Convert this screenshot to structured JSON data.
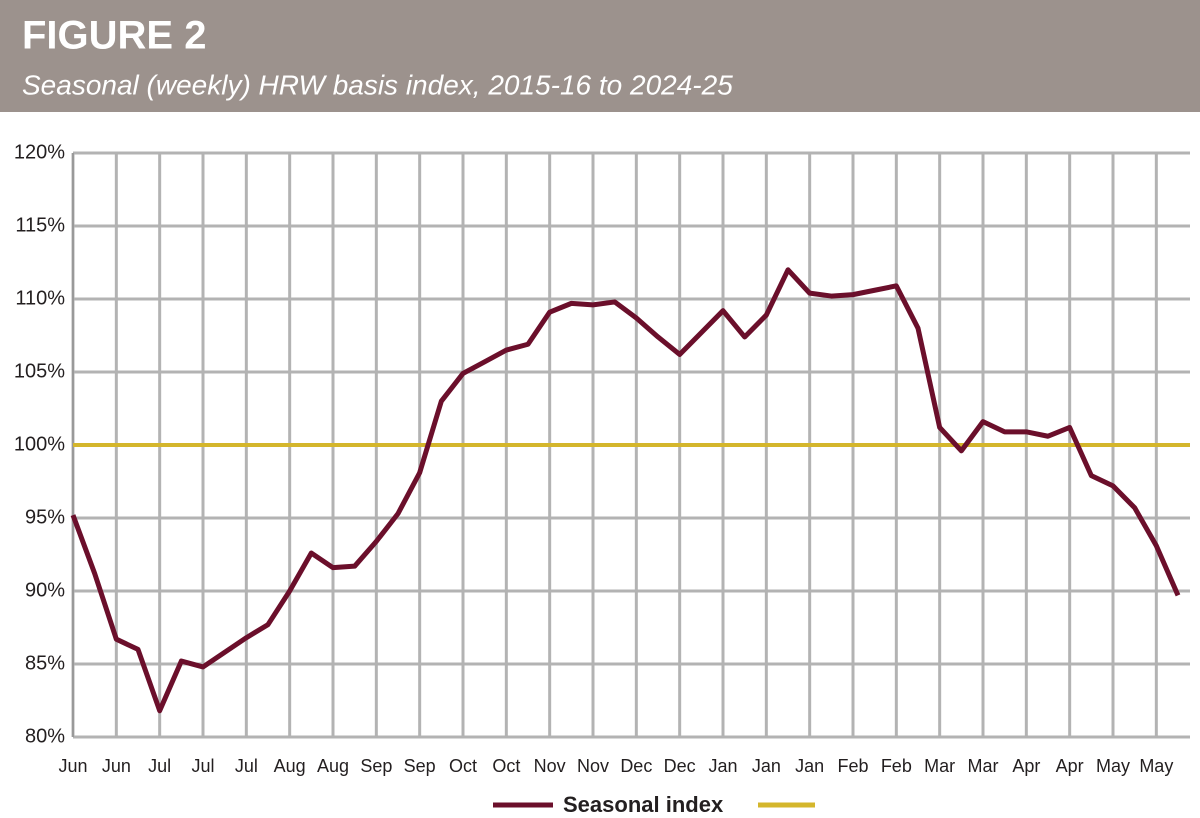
{
  "chart_data": {
    "type": "line",
    "title": "FIGURE 2",
    "subtitle": "Seasonal (weekly) HRW basis index, 2015-16 to 2024-25",
    "categories": [
      "Jun",
      null,
      "Jun",
      null,
      "Jul",
      null,
      "Jul",
      null,
      "Jul",
      null,
      "Aug",
      null,
      "Aug",
      null,
      "Sep",
      null,
      "Sep",
      null,
      "Oct",
      null,
      "Oct",
      null,
      "Nov",
      null,
      "Nov",
      null,
      "Dec",
      null,
      "Dec",
      null,
      "Jan",
      null,
      "Jan",
      null,
      "Jan",
      null,
      "Feb",
      null,
      "Feb",
      null,
      "Mar",
      null,
      "Mar",
      null,
      "Apr",
      null,
      "Apr",
      null,
      "May",
      null,
      "May",
      null
    ],
    "series": [
      {
        "name": "Seasonal index",
        "color": "#6b0f2b",
        "values": [
          95.2,
          91.2,
          86.7,
          86.0,
          81.8,
          85.2,
          84.8,
          85.8,
          86.8,
          87.7,
          90.0,
          92.6,
          91.6,
          91.7,
          93.4,
          95.3,
          98.1,
          103.0,
          104.9,
          105.7,
          106.5,
          106.9,
          109.1,
          109.7,
          109.6,
          109.8,
          108.7,
          107.4,
          106.2,
          107.7,
          109.2,
          107.4,
          108.9,
          112.0,
          110.4,
          110.2,
          110.3,
          110.6,
          110.9,
          108.0,
          101.2,
          99.6,
          101.6,
          100.9,
          100.9,
          100.6,
          101.2,
          97.9,
          97.2,
          95.7,
          93.1,
          89.7
        ]
      }
    ],
    "reference_line": {
      "value": 100,
      "color": "#d4b62c"
    },
    "ylim": [
      80,
      120
    ],
    "yticks": [
      {
        "value": 80,
        "label": "80%"
      },
      {
        "value": 85,
        "label": "85%"
      },
      {
        "value": 90,
        "label": "90%"
      },
      {
        "value": 95,
        "label": "95%"
      },
      {
        "value": 100,
        "label": "100%"
      },
      {
        "value": 105,
        "label": "105%"
      },
      {
        "value": 110,
        "label": "110%"
      },
      {
        "value": 115,
        "label": "115%"
      },
      {
        "value": 120,
        "label": "120%"
      }
    ],
    "grid": true
  }
}
